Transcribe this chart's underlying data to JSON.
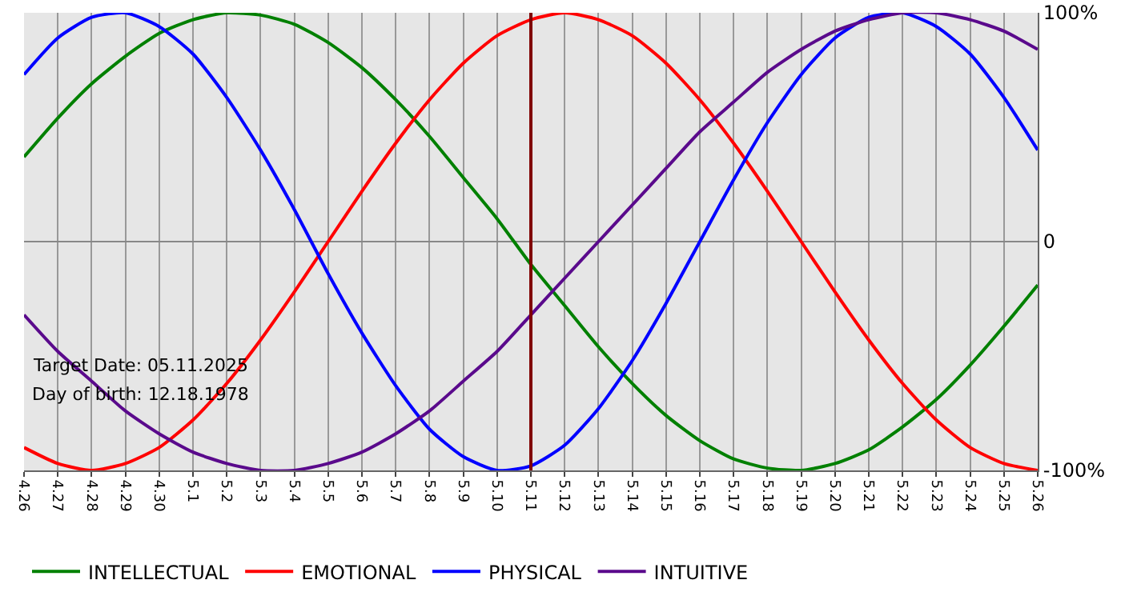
{
  "chart_data": {
    "type": "line",
    "categories": [
      "4.26",
      "4.27",
      "4.28",
      "4.29",
      "4.30",
      "5.1",
      "5.2",
      "5.3",
      "5.4",
      "5.5",
      "5.6",
      "5.7",
      "5.8",
      "5.9",
      "5.10",
      "5.11",
      "5.12",
      "5.13",
      "5.14",
      "5.15",
      "5.16",
      "5.17",
      "5.18",
      "5.19",
      "5.20",
      "5.21",
      "5.22",
      "5.23",
      "5.24",
      "5.25",
      "5.26"
    ],
    "series": [
      {
        "name": "INTELLECTUAL",
        "color": "#008000",
        "values": [
          37,
          54,
          69,
          81,
          91,
          97,
          100,
          99,
          95,
          87,
          76,
          62,
          46,
          28,
          10,
          -10,
          -28,
          -46,
          -62,
          -76,
          -87,
          -95,
          -99,
          -100,
          -97,
          -91,
          -81,
          -69,
          -54,
          -37,
          -19
        ]
      },
      {
        "name": "EMOTIONAL",
        "color": "#ff0000",
        "values": [
          -90,
          -97,
          -100,
          -97,
          -90,
          -78,
          -62,
          -43,
          -22,
          0,
          22,
          43,
          62,
          78,
          90,
          97,
          100,
          97,
          90,
          78,
          62,
          43,
          22,
          0,
          -22,
          -43,
          -62,
          -78,
          -90,
          -97,
          -100
        ]
      },
      {
        "name": "PHYSICAL",
        "color": "#0000ff",
        "values": [
          73,
          89,
          98,
          100,
          94,
          82,
          63,
          40,
          14,
          -14,
          -40,
          -63,
          -82,
          -94,
          -100,
          -98,
          -89,
          -73,
          -52,
          -27,
          0,
          27,
          52,
          73,
          89,
          98,
          100,
          94,
          82,
          63,
          40
        ]
      },
      {
        "name": "INTUITIVE",
        "color": "#5a0a8c",
        "values": [
          -32,
          -48,
          -61,
          -74,
          -84,
          -92,
          -97,
          -100,
          -100,
          -97,
          -92,
          -84,
          -74,
          -61,
          -48,
          -32,
          -16,
          0,
          16,
          32,
          48,
          61,
          74,
          84,
          92,
          97,
          100,
          100,
          97,
          92,
          84
        ]
      }
    ],
    "ylim": [
      -100,
      100
    ],
    "yticks": [
      {
        "value": -100,
        "label": "-100%"
      },
      0,
      {
        "value": 100,
        "label": "100%"
      }
    ],
    "grid": true,
    "legend": "bottom left",
    "marker": "none",
    "line_style": "solid",
    "ref_lines": [
      {
        "axis": "x",
        "value": "5.11",
        "color": "#800000"
      }
    ],
    "annotations": [
      "Target Date: 05.11.2025",
      "Day of birth: 12.18.1978"
    ]
  }
}
